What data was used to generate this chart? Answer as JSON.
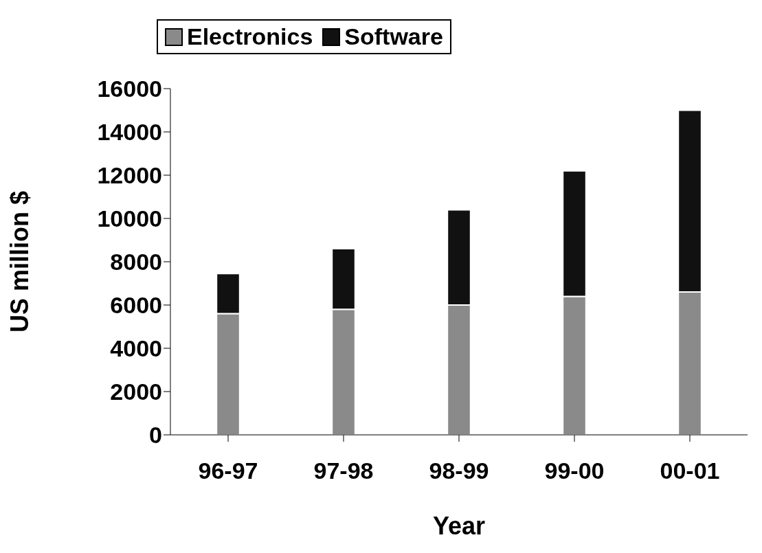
{
  "chart_data": {
    "type": "bar",
    "stacked": true,
    "xlabel": "Year",
    "ylabel": "US million $",
    "categories": [
      "96-97",
      "97-98",
      "98-99",
      "99-00",
      "00-01"
    ],
    "series": [
      {
        "name": "Electronics",
        "color": "#8a8a8a",
        "values": [
          5600,
          5800,
          6000,
          6400,
          6600
        ]
      },
      {
        "name": "Software",
        "color": "#111111",
        "values": [
          1850,
          2800,
          4400,
          5800,
          8400
        ]
      }
    ],
    "ylim": [
      0,
      16000
    ],
    "yticks": [
      0,
      2000,
      4000,
      6000,
      8000,
      10000,
      12000,
      14000,
      16000
    ],
    "grid": false,
    "legend": "top"
  }
}
